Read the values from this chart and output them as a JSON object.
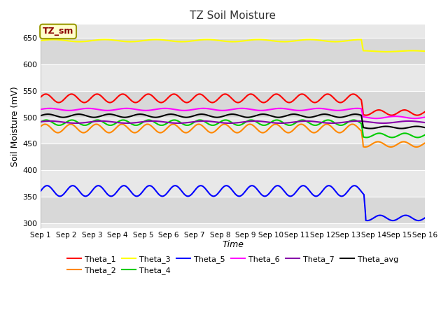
{
  "title": "TZ Soil Moisture",
  "xlabel": "Time",
  "ylabel": "Soil Moisture (mV)",
  "ylim": [
    290,
    675
  ],
  "yticks": [
    300,
    350,
    400,
    450,
    500,
    550,
    600,
    650
  ],
  "x_labels": [
    "Sep 1",
    "Sep 2",
    "Sep 3",
    "Sep 4",
    "Sep 5",
    "Sep 6",
    "Sep 7",
    "Sep 8",
    "Sep 9",
    "Sep 10",
    "Sep 11",
    "Sep 12",
    "Sep 13",
    "Sep 14",
    "Sep 15",
    "Sep 16"
  ],
  "annotation_text": "TZ_sm",
  "bg_color": "#e8e8e8",
  "grid_color": "#ffffff",
  "series_order": [
    "Theta_1",
    "Theta_2",
    "Theta_3",
    "Theta_4",
    "Theta_5",
    "Theta_6",
    "Theta_7",
    "Theta_avg"
  ],
  "series": {
    "Theta_1": {
      "color": "#ff0000",
      "base": 536,
      "amp": 8,
      "period": 1.0,
      "phase": 0.3,
      "drop_day": 12.5,
      "post_base": 509,
      "post_amp": 5
    },
    "Theta_2": {
      "color": "#ff8800",
      "base": 479,
      "amp": 8,
      "period": 1.0,
      "phase": 0.5,
      "drop_day": 12.5,
      "post_base": 449,
      "post_amp": 5
    },
    "Theta_3": {
      "color": "#ffff00",
      "base": 645,
      "amp": 2,
      "period": 2.0,
      "phase": 0.0,
      "drop_day": 12.5,
      "post_base": 625,
      "post_amp": 1
    },
    "Theta_4": {
      "color": "#00cc00",
      "base": 490,
      "amp": 5,
      "period": 1.0,
      "phase": 0.2,
      "drop_day": 12.5,
      "post_base": 466,
      "post_amp": 4
    },
    "Theta_5": {
      "color": "#0000ff",
      "base": 361,
      "amp": 10,
      "period": 1.0,
      "phase": 0.0,
      "drop_day": 12.6,
      "post_base": 310,
      "post_amp": 5
    },
    "Theta_6": {
      "color": "#ff00ff",
      "base": 515,
      "amp": 2,
      "period": 1.5,
      "phase": 0.1,
      "drop_day": 12.5,
      "post_base": 500,
      "post_amp": 2
    },
    "Theta_7": {
      "color": "#8800aa",
      "base": 491,
      "amp": 2,
      "period": 2.0,
      "phase": 0.4,
      "drop_day": 99,
      "post_base": 484,
      "post_amp": 2
    },
    "Theta_avg": {
      "color": "#000000",
      "base": 503,
      "amp": 3,
      "period": 1.2,
      "phase": 0.1,
      "drop_day": 12.5,
      "post_base": 481,
      "post_amp": 2
    }
  },
  "legend_row1": [
    "Theta_1",
    "Theta_2",
    "Theta_3",
    "Theta_4",
    "Theta_5",
    "Theta_6"
  ],
  "legend_row2": [
    "Theta_7",
    "Theta_avg"
  ]
}
